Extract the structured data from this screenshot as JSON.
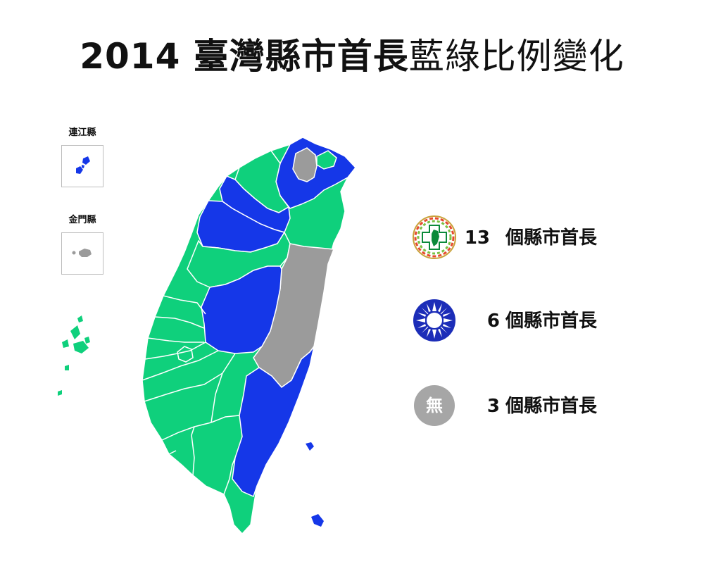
{
  "title": {
    "year": "2014",
    "bold_part": "臺灣縣市首長",
    "light_part": "藍綠比例變化"
  },
  "insets": [
    {
      "label": "連江縣",
      "party": "kmt"
    },
    {
      "label": "金門縣",
      "party": "none"
    }
  ],
  "legend": [
    {
      "party": "dpp",
      "icon": "dpp-emblem-icon",
      "count": "13",
      "label": "個縣市首長"
    },
    {
      "party": "kmt",
      "icon": "kmt-emblem-icon",
      "count": "6",
      "label": "個縣市首長"
    },
    {
      "party": "none",
      "icon": "no-party-icon",
      "icon_text": "無",
      "count": "3",
      "label": "個縣市首長"
    }
  ],
  "colors": {
    "dpp_green": "#0fd07c",
    "kmt_blue": "#1537e8",
    "none_gray": "#9b9b9b",
    "border": "#ffffff"
  }
}
